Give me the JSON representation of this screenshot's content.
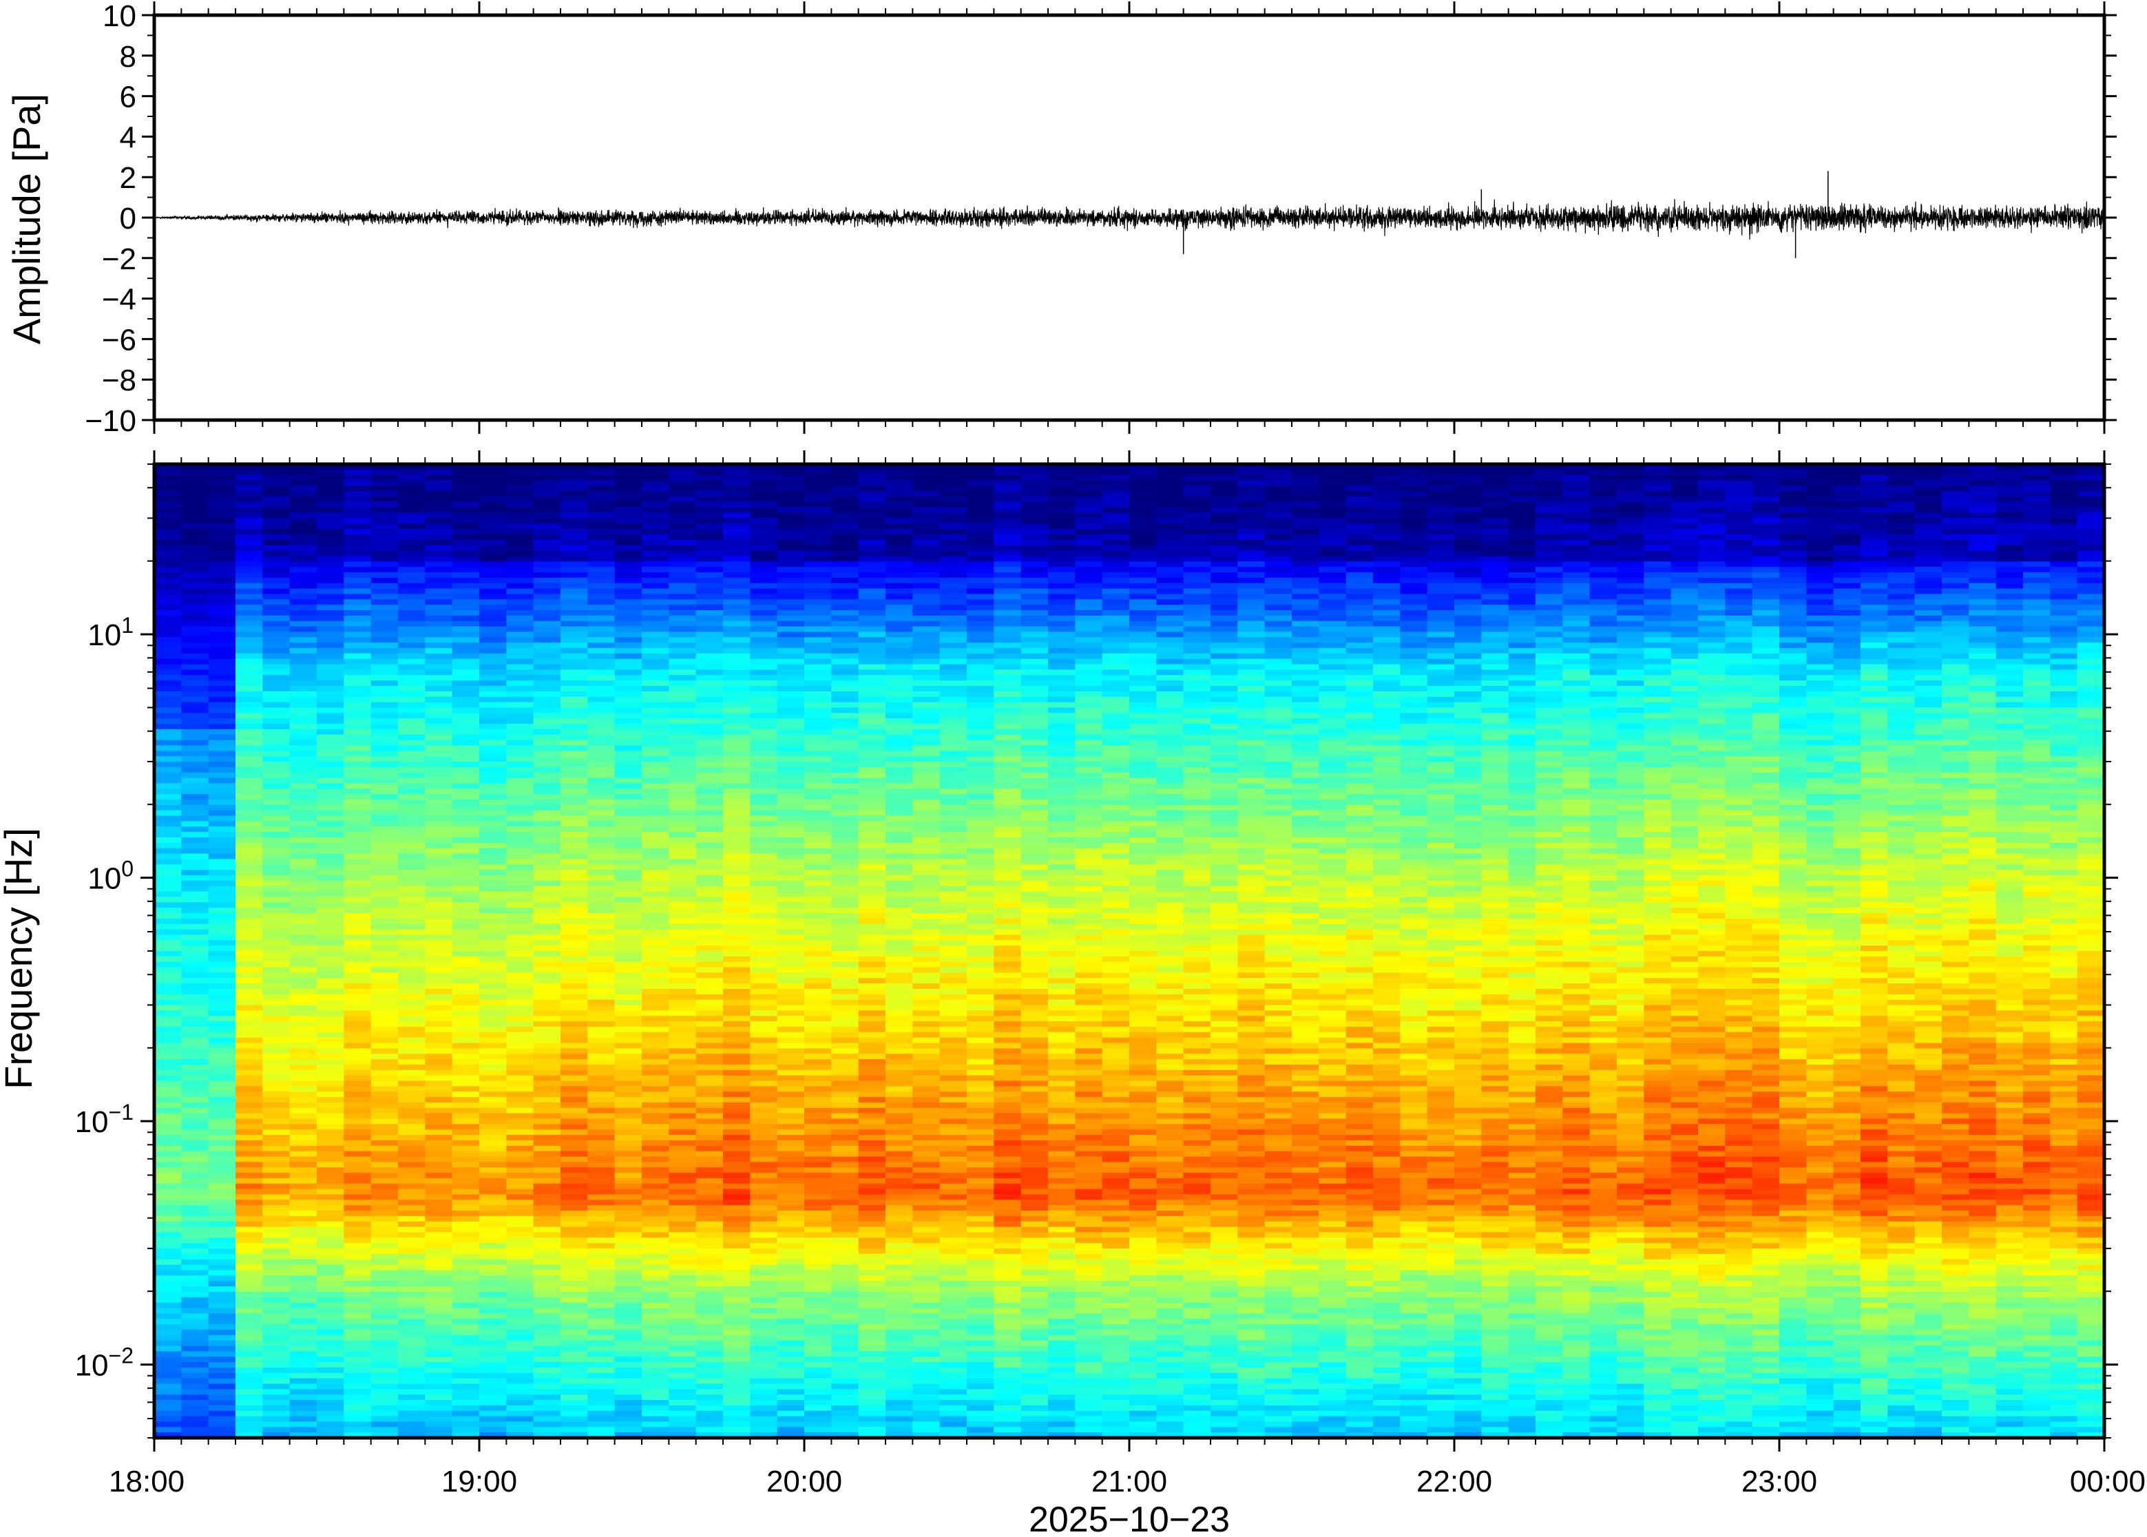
{
  "chart_data": [
    {
      "type": "line",
      "ylabel": "Amplitude [Pa]",
      "ylim": [
        -10,
        10
      ],
      "yticks": [
        "10",
        "8",
        "6",
        "4",
        "2",
        "0",
        "−2",
        "−4",
        "−6",
        "−8",
        "−10"
      ],
      "ytick_values": [
        10,
        8,
        6,
        4,
        2,
        0,
        -2,
        -4,
        -6,
        -8,
        -10
      ],
      "x_range": [
        "18:00",
        "00:00"
      ],
      "envelope": {
        "times": [
          "18:00",
          "18:30",
          "19:00",
          "19:30",
          "20:00",
          "20:30",
          "21:00",
          "21:30",
          "22:00",
          "22:30",
          "23:00",
          "23:30",
          "00:00"
        ],
        "typical_peak_pa": [
          0.05,
          0.4,
          0.55,
          0.6,
          0.6,
          0.65,
          0.75,
          0.85,
          0.9,
          0.95,
          1.1,
          0.9,
          0.9
        ]
      },
      "spikes": [
        {
          "time": "21:10",
          "pa": -1.8
        },
        {
          "time": "22:05",
          "pa": 1.4
        },
        {
          "time": "23:09",
          "pa": 2.3
        },
        {
          "time": "23:03",
          "pa": -2.0
        }
      ],
      "color": "#000000"
    },
    {
      "type": "heatmap",
      "ylabel": "Frequency [Hz]",
      "xlabel": "2025−10−23",
      "yscale": "log",
      "ylim": [
        0.005,
        50
      ],
      "yticks": [
        {
          "value": 0.01,
          "base": "10",
          "exp": "−2"
        },
        {
          "value": 0.1,
          "base": "10",
          "exp": "−1"
        },
        {
          "value": 1,
          "base": "10",
          "exp": "0"
        },
        {
          "value": 10,
          "base": "10",
          "exp": "1"
        }
      ],
      "xticks": [
        "18:00",
        "19:00",
        "20:00",
        "21:00",
        "22:00",
        "23:00",
        "00:00"
      ],
      "colormap": "jet",
      "colormap_colors": [
        "#00007f",
        "#0000ff",
        "#007fff",
        "#00ffff",
        "#7fff7f",
        "#ffff00",
        "#ff7f00",
        "#ff0000",
        "#7f0000"
      ],
      "description_levels": {
        "peak_power_band_hz": [
          0.03,
          0.2
        ],
        "low_power_band_hz": [
          20,
          50
        ]
      }
    }
  ]
}
